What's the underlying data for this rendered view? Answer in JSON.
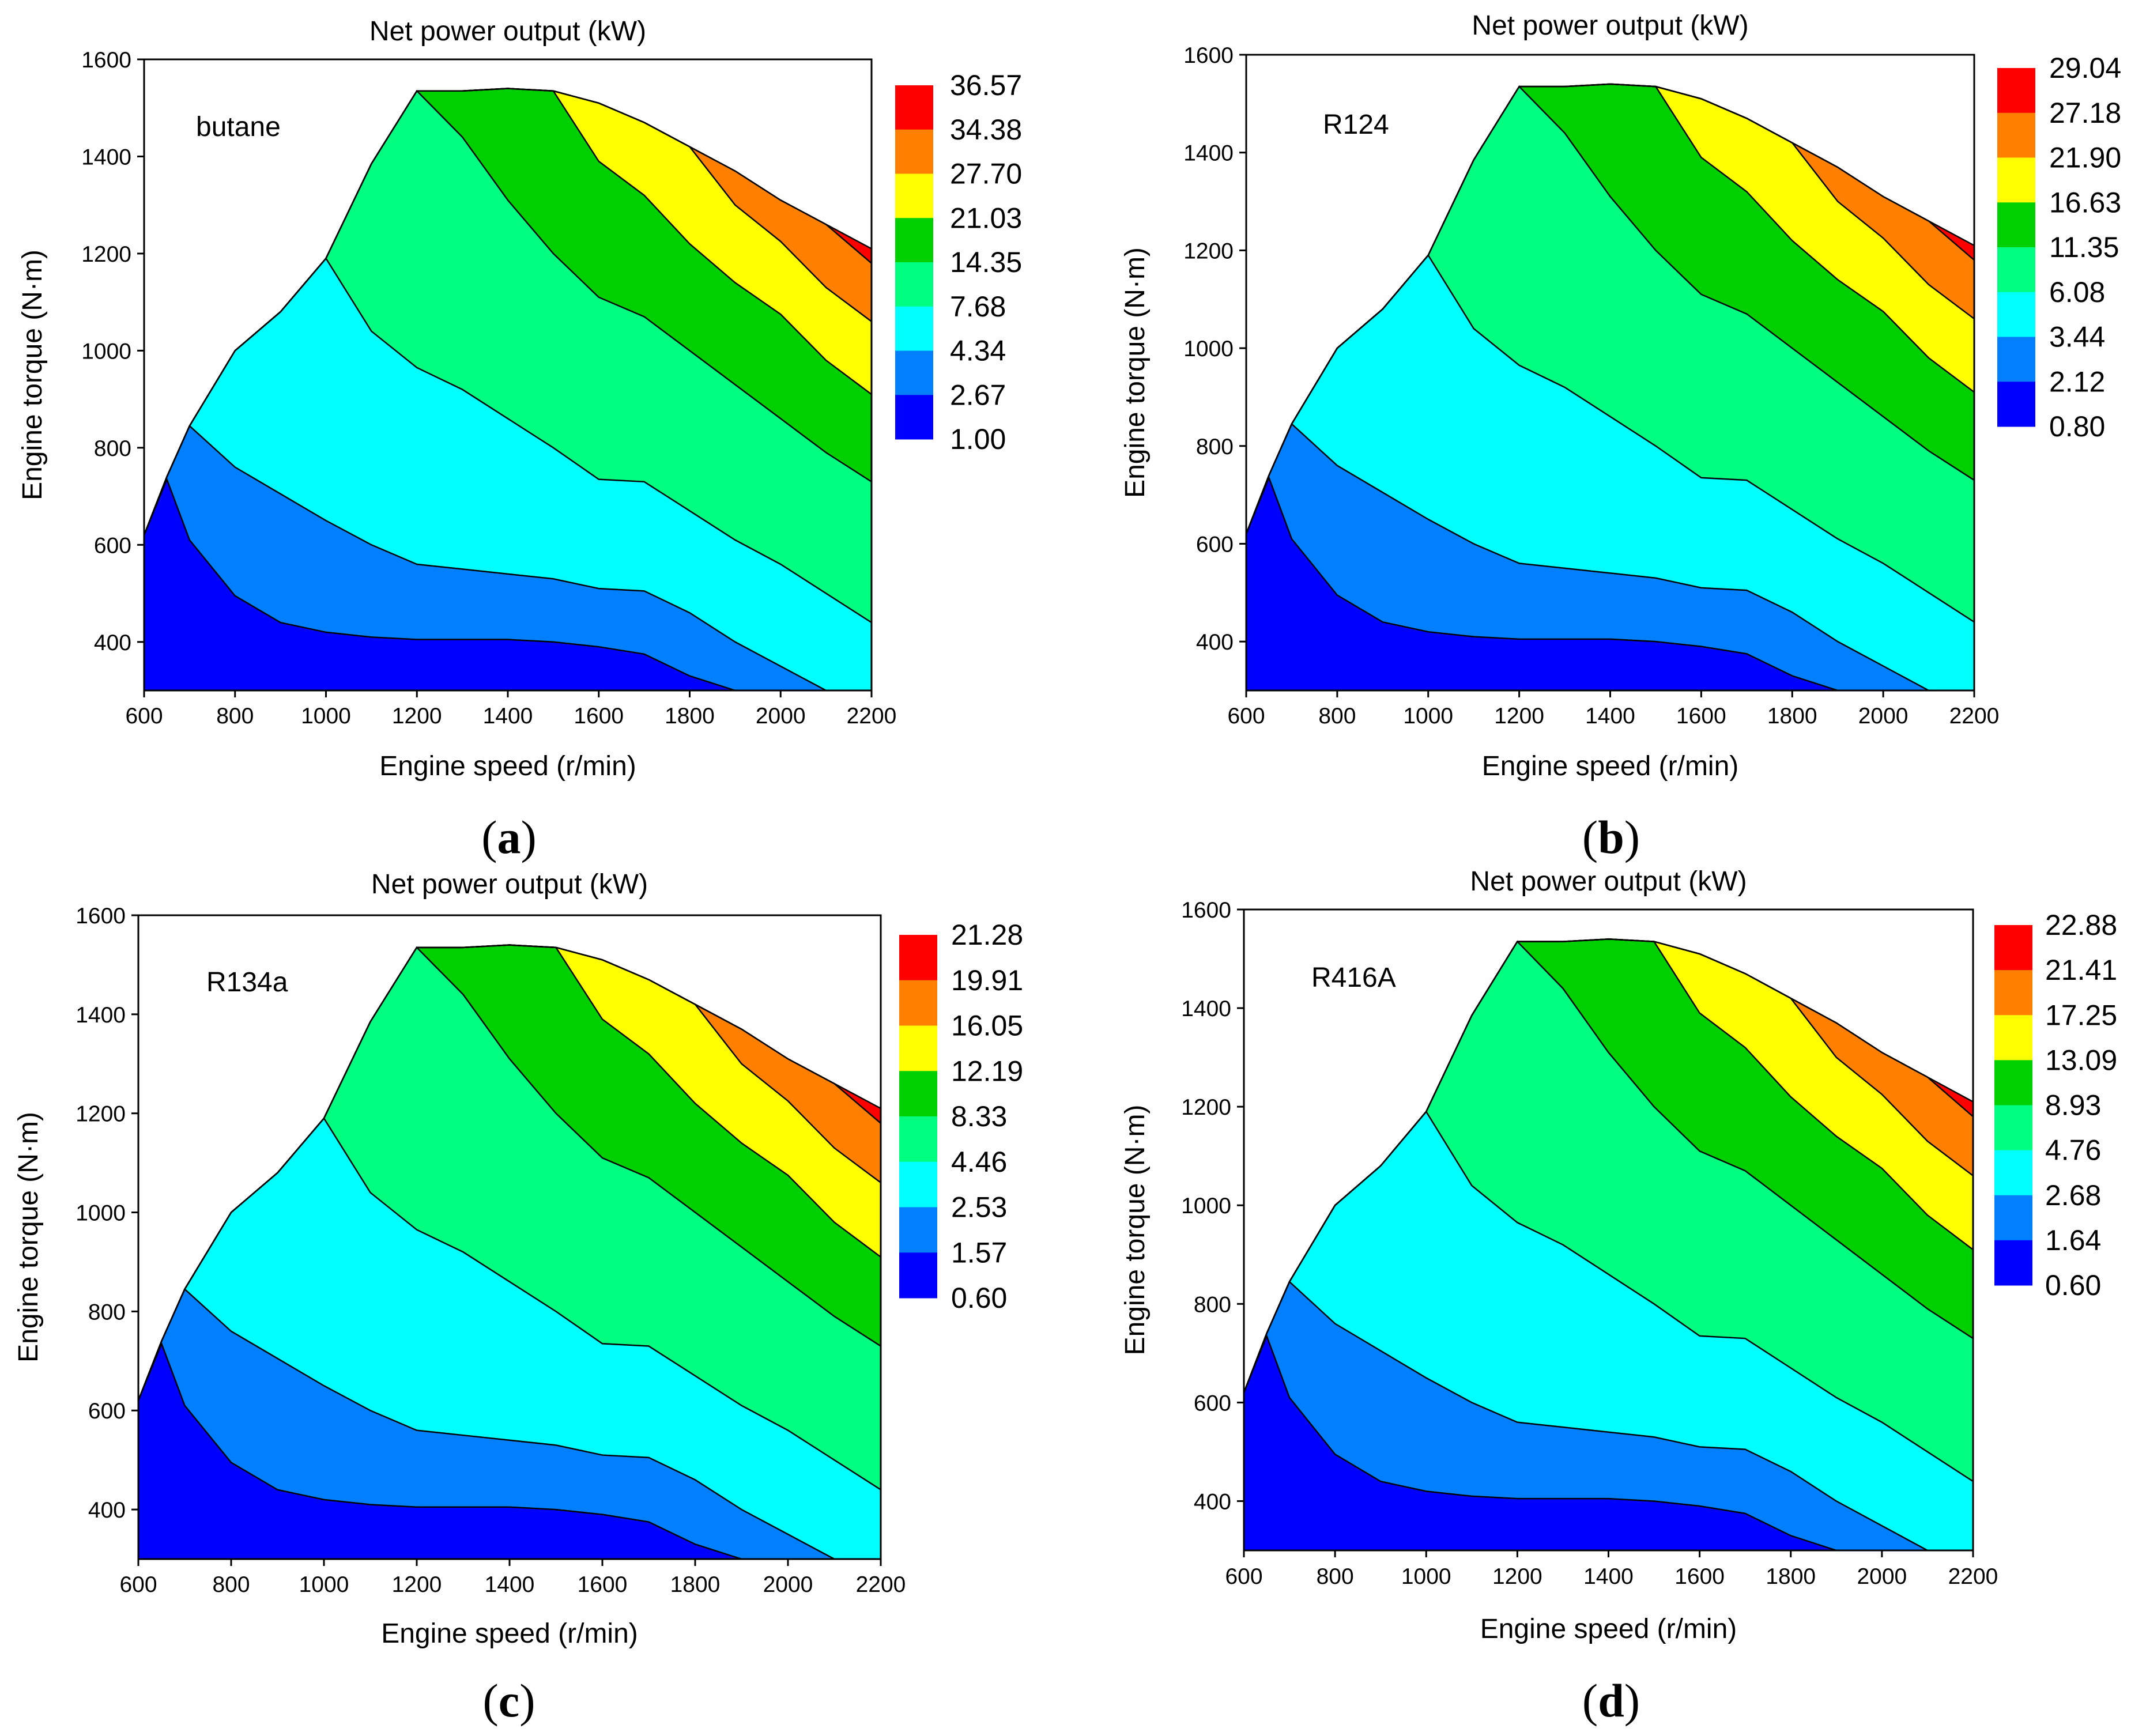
{
  "chart_data": [
    {
      "type": "contour",
      "panel_label": "a",
      "title": "Net power output (kW)",
      "annotation": "butane",
      "xlabel": "Engine speed (r/min)",
      "ylabel": "Engine torque (N·m)",
      "xlim": [
        600,
        2200
      ],
      "ylim": [
        300,
        1600
      ],
      "xticks": [
        600,
        800,
        1000,
        1200,
        1400,
        1600,
        1800,
        2000,
        2200
      ],
      "yticks": [
        400,
        600,
        800,
        1000,
        1200,
        1400,
        1600
      ],
      "levels": [
        "36.57",
        "34.38",
        "27.70",
        "21.03",
        "14.35",
        "7.68",
        "4.34",
        "2.67",
        "1.00"
      ]
    },
    {
      "type": "contour",
      "panel_label": "b",
      "title": "Net power output (kW)",
      "annotation": "R124",
      "xlabel": "Engine speed (r/min)",
      "ylabel": "Engine torque (N·m)",
      "xlim": [
        600,
        2200
      ],
      "ylim": [
        300,
        1600
      ],
      "xticks": [
        600,
        800,
        1000,
        1200,
        1400,
        1600,
        1800,
        2000,
        2200
      ],
      "yticks": [
        400,
        600,
        800,
        1000,
        1200,
        1400,
        1600
      ],
      "levels": [
        "29.04",
        "27.18",
        "21.90",
        "16.63",
        "11.35",
        "6.08",
        "3.44",
        "2.12",
        "0.80"
      ]
    },
    {
      "type": "contour",
      "panel_label": "c",
      "title": "Net power output (kW)",
      "annotation": "R134a",
      "xlabel": "Engine speed (r/min)",
      "ylabel": "Engine torque (N·m)",
      "xlim": [
        600,
        2200
      ],
      "ylim": [
        300,
        1600
      ],
      "xticks": [
        600,
        800,
        1000,
        1200,
        1400,
        1600,
        1800,
        2000,
        2200
      ],
      "yticks": [
        400,
        600,
        800,
        1000,
        1200,
        1400,
        1600
      ],
      "levels": [
        "21.28",
        "19.91",
        "16.05",
        "12.19",
        "8.33",
        "4.46",
        "2.53",
        "1.57",
        "0.60"
      ]
    },
    {
      "type": "contour",
      "panel_label": "d",
      "title": "Net power output (kW)",
      "annotation": "R416A",
      "xlabel": "Engine speed (r/min)",
      "ylabel": "Engine torque (N·m)",
      "xlim": [
        600,
        2200
      ],
      "ylim": [
        300,
        1600
      ],
      "xticks": [
        600,
        800,
        1000,
        1200,
        1400,
        1600,
        1800,
        2000,
        2200
      ],
      "yticks": [
        400,
        600,
        800,
        1000,
        1200,
        1400,
        1600
      ],
      "levels": [
        "22.88",
        "21.41",
        "17.25",
        "13.09",
        "8.93",
        "4.76",
        "2.68",
        "1.64",
        "0.60"
      ]
    }
  ],
  "colors": {
    "band_colors_high_to_low": [
      "#ff0000",
      "#ff8000",
      "#ffff00",
      "#00d000",
      "#00ff80",
      "#00ffff",
      "#0080ff",
      "#0000ff"
    ],
    "line": "#000000"
  },
  "envelope": {
    "speed": [
      600,
      650,
      700,
      800,
      900,
      1000,
      1100,
      1200,
      1300,
      1400,
      1500,
      1600,
      1700,
      1800,
      1900,
      2000,
      2100,
      2200
    ],
    "torque": [
      620,
      740,
      845,
      1000,
      1080,
      1190,
      1385,
      1535,
      1535,
      1540,
      1535,
      1510,
      1470,
      1420,
      1370,
      1310,
      1260,
      1210
    ]
  },
  "contour_lines": {
    "speed": [
      600,
      650,
      700,
      800,
      900,
      1000,
      1100,
      1200,
      1300,
      1400,
      1500,
      1600,
      1700,
      1800,
      1900,
      2000,
      2100,
      2200
    ],
    "torque": [
      [
        620,
        735,
        610,
        495,
        440,
        420,
        410,
        405,
        405,
        405,
        400,
        390,
        375,
        330,
        300,
        300,
        300,
        300
      ],
      [
        620,
        740,
        845,
        760,
        705,
        650,
        600,
        560,
        550,
        540,
        530,
        510,
        505,
        460,
        400,
        350,
        300,
        300
      ],
      [
        620,
        740,
        845,
        1000,
        1080,
        1190,
        1040,
        965,
        920,
        860,
        800,
        735,
        730,
        670,
        610,
        560,
        500,
        440
      ],
      [
        620,
        740,
        845,
        1000,
        1080,
        1190,
        1385,
        1535,
        1440,
        1310,
        1200,
        1110,
        1070,
        1000,
        930,
        860,
        790,
        730
      ],
      [
        620,
        740,
        845,
        1000,
        1080,
        1190,
        1385,
        1535,
        1535,
        1540,
        1535,
        1390,
        1320,
        1220,
        1140,
        1075,
        980,
        910
      ],
      [
        620,
        740,
        845,
        1000,
        1080,
        1190,
        1385,
        1535,
        1535,
        1540,
        1535,
        1510,
        1470,
        1420,
        1300,
        1225,
        1130,
        1060
      ],
      [
        620,
        740,
        845,
        1000,
        1080,
        1190,
        1385,
        1535,
        1535,
        1540,
        1535,
        1510,
        1470,
        1420,
        1370,
        1310,
        1260,
        1180
      ]
    ]
  }
}
